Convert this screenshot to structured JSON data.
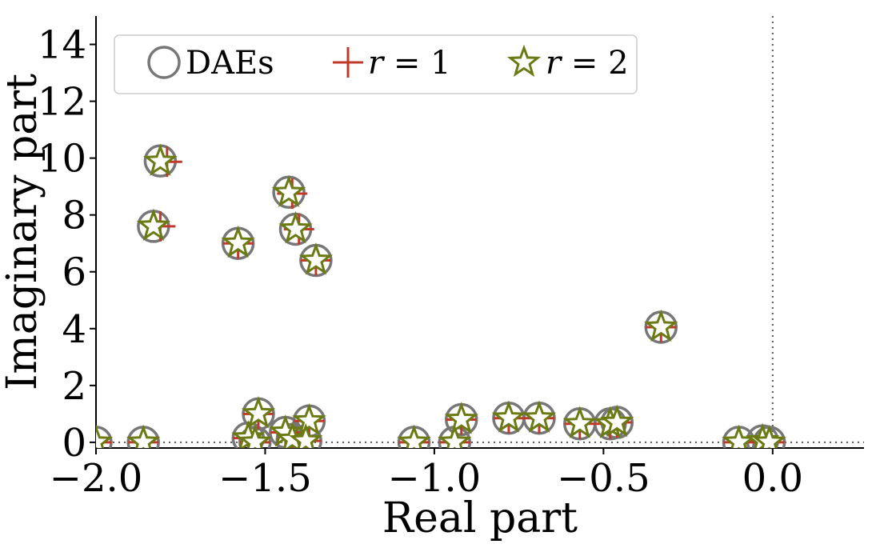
{
  "chart_data": {
    "type": "scatter",
    "xlabel": "Real part",
    "ylabel": "Imaginary part",
    "xlim": [
      -2.0,
      0.27
    ],
    "ylim": [
      -0.2,
      15.0
    ],
    "xticks": [
      -2.0,
      -1.5,
      -1.0,
      -0.5,
      0.0
    ],
    "xtick_labels": [
      "−2.0",
      "−1.5",
      "−1.0",
      "−0.5",
      "0.0"
    ],
    "yticks": [
      0,
      2,
      4,
      6,
      8,
      10,
      12,
      14
    ],
    "ytick_labels": [
      "0",
      "2",
      "4",
      "6",
      "8",
      "10",
      "12",
      "14"
    ],
    "reference_lines": {
      "x": 0.0,
      "y": 0.0,
      "style": "dotted"
    },
    "legend": {
      "placement": "top-left",
      "entries": [
        {
          "marker": "circle",
          "label": "DAEs"
        },
        {
          "marker": "plus",
          "label_var": "r",
          "label_eq": " = 1"
        },
        {
          "marker": "star",
          "label_var": "r",
          "label_eq": " = 2"
        }
      ]
    },
    "colors": {
      "daes": "#777777",
      "r1": "#c0392b",
      "r2": "#6b7a12"
    },
    "series": [
      {
        "name": "DAEs",
        "marker": "circle",
        "points": [
          [
            -2.0,
            0.0
          ],
          [
            -1.86,
            0.0
          ],
          [
            -1.81,
            9.9
          ],
          [
            -1.83,
            7.6
          ],
          [
            -1.58,
            7.0
          ],
          [
            -1.43,
            8.8
          ],
          [
            -1.41,
            7.5
          ],
          [
            -1.35,
            6.4
          ],
          [
            -0.33,
            4.05
          ],
          [
            -1.52,
            1.0
          ],
          [
            -1.55,
            0.15
          ],
          [
            -1.53,
            0.0
          ],
          [
            -1.44,
            0.35
          ],
          [
            -1.42,
            0.1
          ],
          [
            -1.37,
            0.75
          ],
          [
            -1.38,
            0.05
          ],
          [
            -1.06,
            0.0
          ],
          [
            -0.92,
            0.8
          ],
          [
            -0.94,
            0.0
          ],
          [
            -0.78,
            0.85
          ],
          [
            -0.69,
            0.85
          ],
          [
            -0.57,
            0.65
          ],
          [
            -0.48,
            0.65
          ],
          [
            -0.46,
            0.7
          ],
          [
            -0.1,
            0.0
          ],
          [
            -0.03,
            0.05
          ],
          [
            -0.01,
            0.0
          ]
        ]
      },
      {
        "name": "r = 1",
        "marker": "plus",
        "points": [
          [
            -2.0,
            0.0
          ],
          [
            -1.86,
            0.0
          ],
          [
            -1.79,
            9.87
          ],
          [
            -1.81,
            7.6
          ],
          [
            -1.58,
            7.0
          ],
          [
            -1.42,
            8.75
          ],
          [
            -1.4,
            7.5
          ],
          [
            -1.35,
            6.4
          ],
          [
            -0.33,
            4.05
          ],
          [
            -1.52,
            1.0
          ],
          [
            -1.55,
            0.15
          ],
          [
            -1.53,
            0.0
          ],
          [
            -1.44,
            0.35
          ],
          [
            -1.42,
            0.1
          ],
          [
            -1.37,
            0.75
          ],
          [
            -1.38,
            0.05
          ],
          [
            -1.06,
            0.0
          ],
          [
            -0.92,
            0.8
          ],
          [
            -0.94,
            0.0
          ],
          [
            -0.78,
            0.85
          ],
          [
            -0.69,
            0.85
          ],
          [
            -0.57,
            0.65
          ],
          [
            -0.48,
            0.65
          ],
          [
            -0.46,
            0.7
          ],
          [
            -0.1,
            0.0
          ],
          [
            -0.03,
            0.05
          ],
          [
            -0.01,
            0.0
          ]
        ]
      },
      {
        "name": "r = 2",
        "marker": "star",
        "points": [
          [
            -2.0,
            0.0
          ],
          [
            -1.86,
            0.0
          ],
          [
            -1.81,
            9.88
          ],
          [
            -1.83,
            7.6
          ],
          [
            -1.58,
            7.0
          ],
          [
            -1.43,
            8.78
          ],
          [
            -1.41,
            7.5
          ],
          [
            -1.35,
            6.4
          ],
          [
            -0.33,
            4.05
          ],
          [
            -1.52,
            1.0
          ],
          [
            -1.55,
            0.15
          ],
          [
            -1.53,
            0.0
          ],
          [
            -1.44,
            0.35
          ],
          [
            -1.42,
            0.1
          ],
          [
            -1.37,
            0.75
          ],
          [
            -1.38,
            0.05
          ],
          [
            -1.06,
            0.0
          ],
          [
            -0.92,
            0.8
          ],
          [
            -0.94,
            0.0
          ],
          [
            -0.78,
            0.85
          ],
          [
            -0.69,
            0.85
          ],
          [
            -0.57,
            0.65
          ],
          [
            -0.48,
            0.65
          ],
          [
            -0.46,
            0.7
          ],
          [
            -0.1,
            0.0
          ],
          [
            -0.03,
            0.05
          ],
          [
            -0.01,
            0.0
          ]
        ]
      }
    ]
  }
}
